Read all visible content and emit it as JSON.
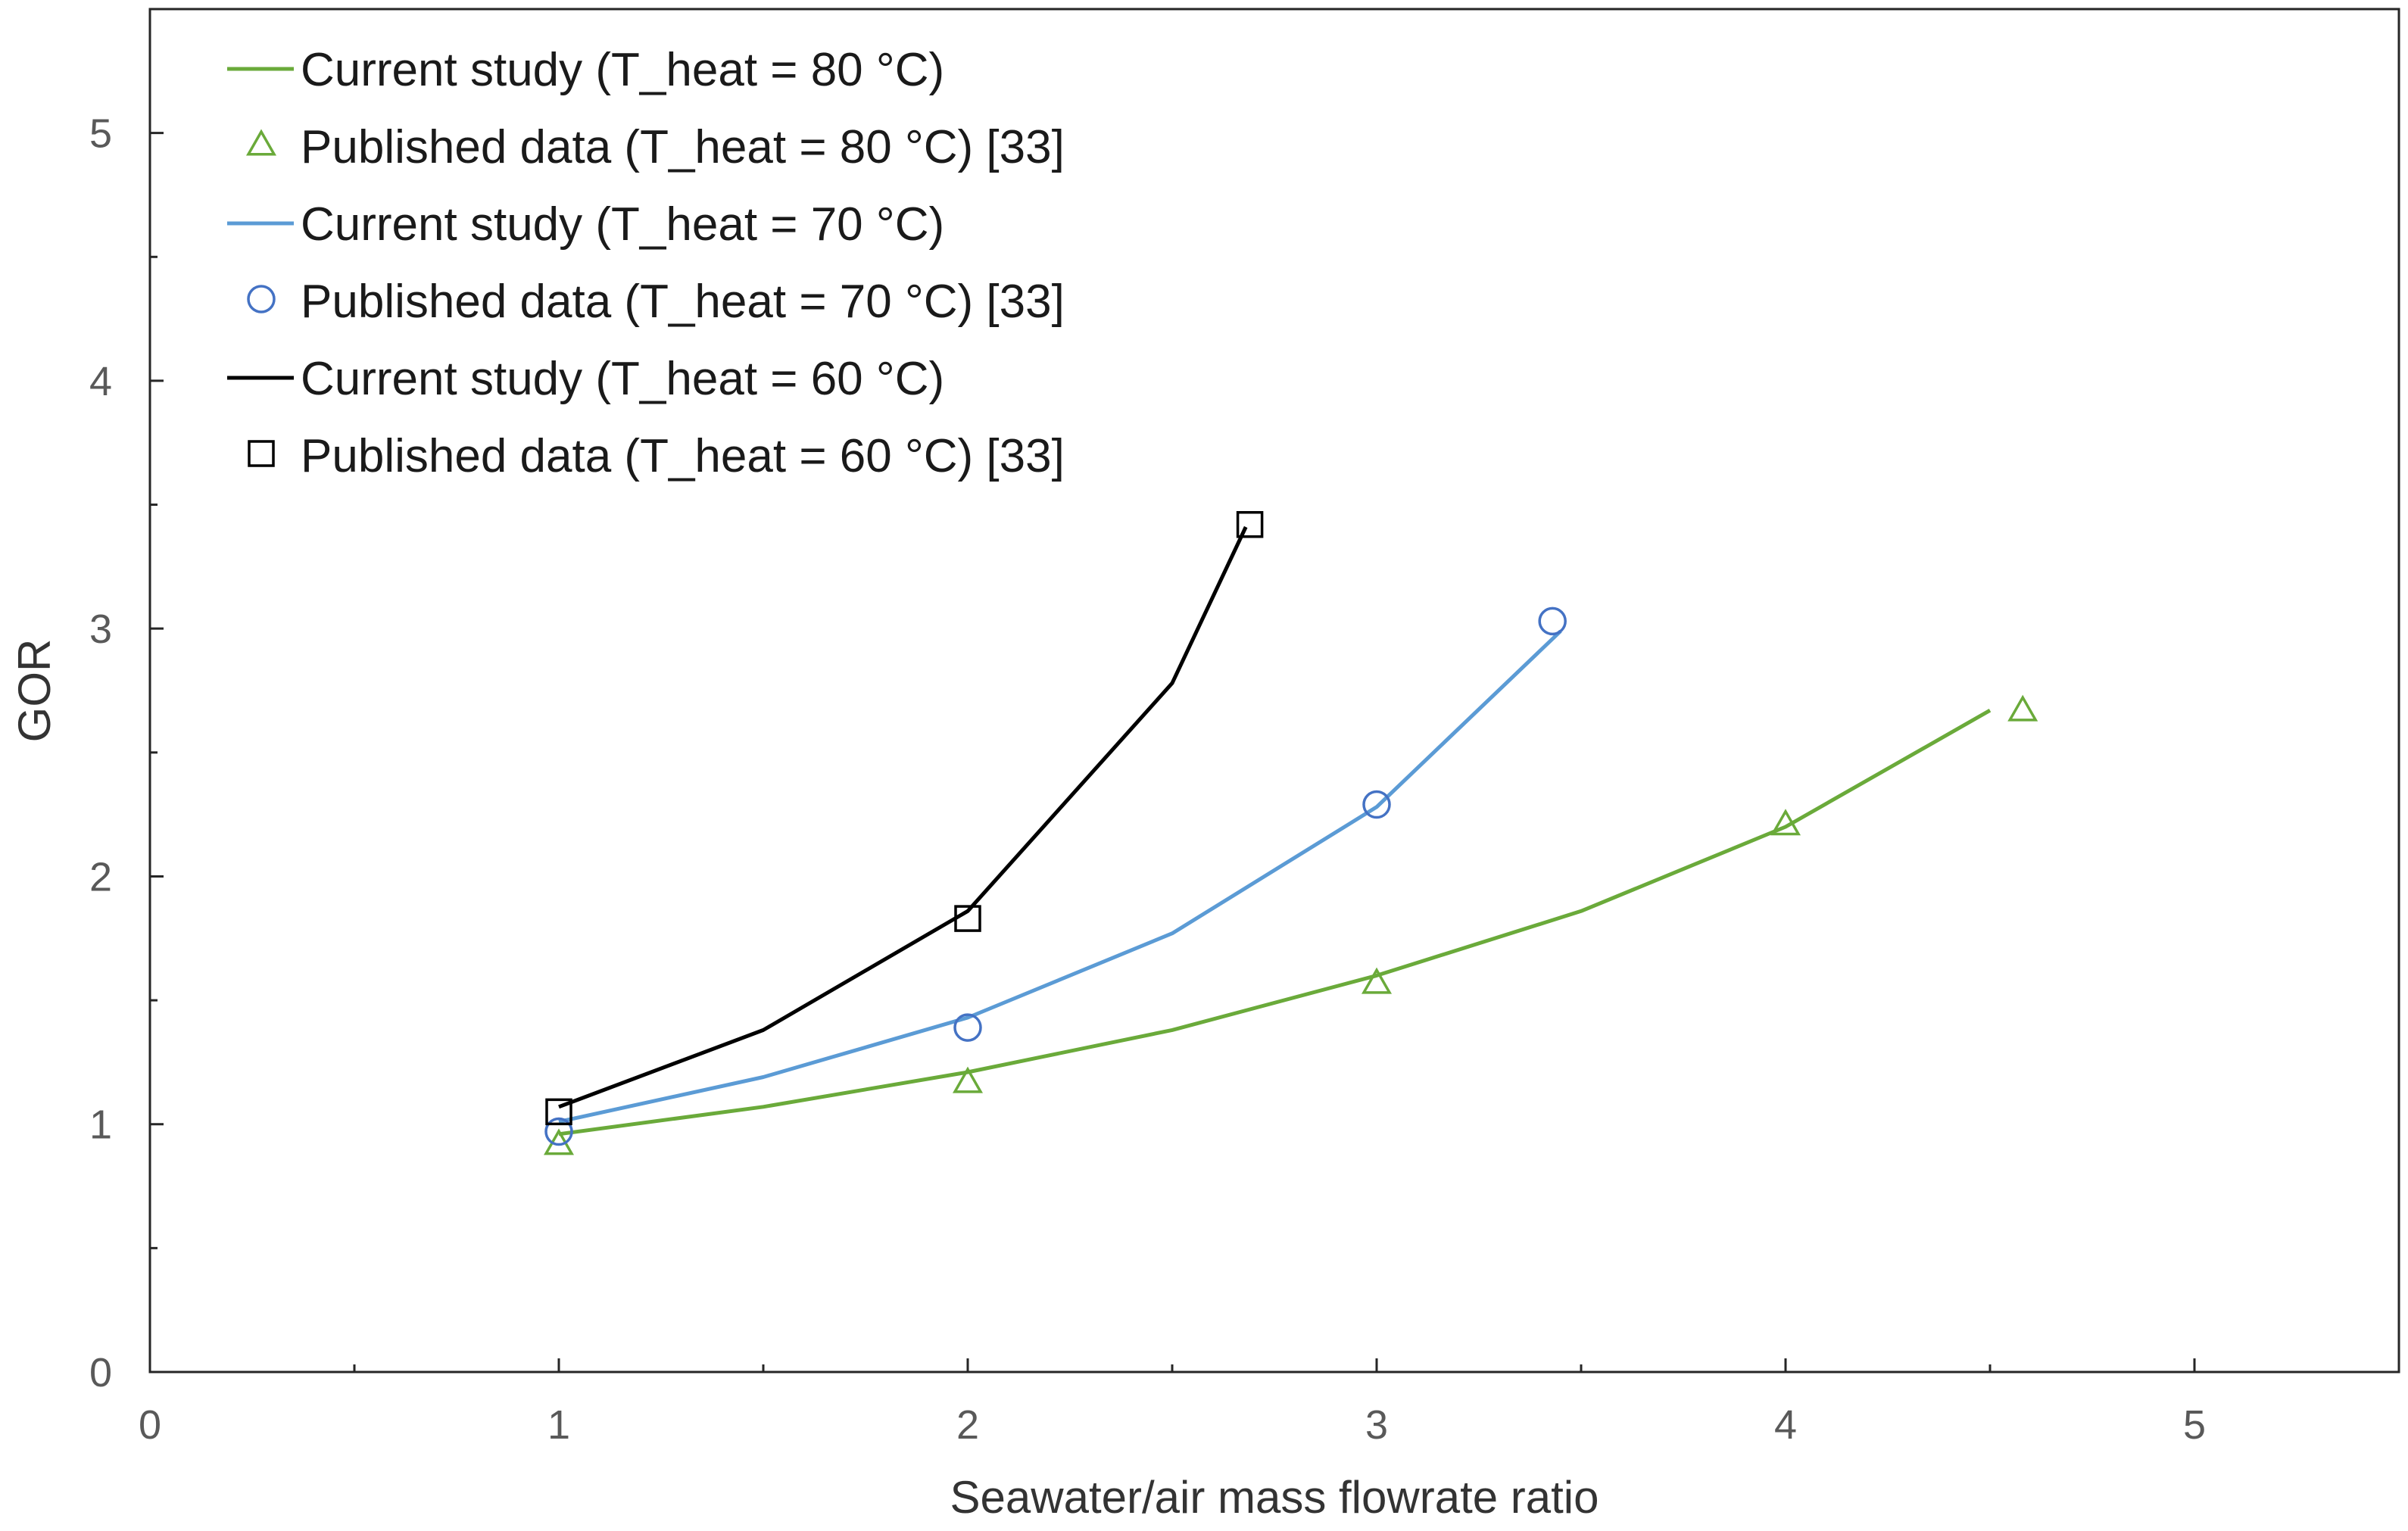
{
  "chart_data": {
    "type": "line",
    "title": "",
    "xlabel": "Seawater/air mass flowrate ratio",
    "ylabel": "GOR",
    "xlim": [
      0,
      5.5
    ],
    "ylim": [
      0,
      5.5
    ],
    "xticks": [
      0,
      1,
      2,
      3,
      4,
      5
    ],
    "yticks": [
      0,
      1,
      2,
      3,
      4,
      5
    ],
    "x_tick_labels": [
      "0",
      "1",
      "2",
      "3",
      "4",
      "5"
    ],
    "y_tick_labels": [
      "0",
      "1",
      "2",
      "3",
      "4",
      "5"
    ],
    "grid": false,
    "legend_position": "top-left",
    "series": [
      {
        "name": "Current study (T_heat = 80 °C)",
        "kind": "line",
        "color": "#6aaa3a",
        "x": [
          1,
          1.5,
          2,
          2.5,
          3,
          3.5,
          4,
          4.5
        ],
        "y": [
          0.96,
          1.07,
          1.21,
          1.38,
          1.6,
          1.86,
          2.2,
          2.67
        ]
      },
      {
        "name": "Published data (T_heat = 80 °C) [33]",
        "kind": "marker",
        "marker": "triangle",
        "color": "#6aaa3a",
        "x": [
          1,
          2,
          3,
          4,
          4.58
        ],
        "y": [
          0.92,
          1.17,
          1.57,
          2.21,
          2.67
        ]
      },
      {
        "name": "Current study (T_heat = 70 °C)",
        "kind": "line",
        "color": "#5b9bd5",
        "x": [
          1,
          1.5,
          2,
          2.5,
          3,
          3.45
        ],
        "y": [
          1.01,
          1.19,
          1.43,
          1.77,
          2.28,
          2.99
        ]
      },
      {
        "name": "Published data (T_heat = 70 °C) [33]",
        "kind": "marker",
        "marker": "circle",
        "color": "#4472c4",
        "x": [
          1,
          2,
          3,
          3.43
        ],
        "y": [
          0.97,
          1.39,
          2.29,
          3.03
        ]
      },
      {
        "name": "Current study (T_heat = 60 °C)",
        "kind": "line",
        "color": "#000000",
        "x": [
          1,
          1.5,
          2,
          2.5,
          2.68
        ],
        "y": [
          1.07,
          1.38,
          1.86,
          2.78,
          3.41
        ]
      },
      {
        "name": "Published data (T_heat = 60 °C) [33]",
        "kind": "marker",
        "marker": "square",
        "color": "#000000",
        "x": [
          1,
          2,
          2.69
        ],
        "y": [
          1.05,
          1.83,
          3.42
        ]
      }
    ]
  }
}
